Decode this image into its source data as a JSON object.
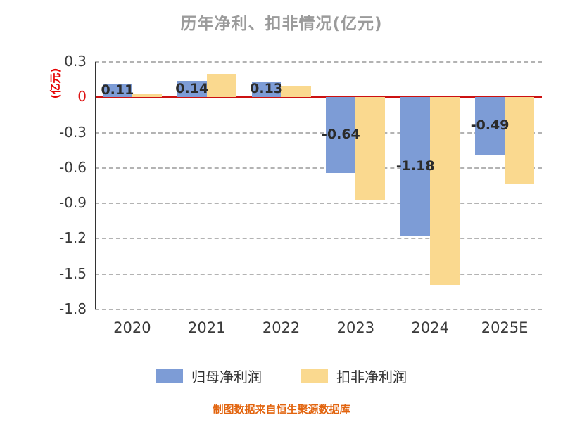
{
  "footer": "制图数据来自恒生聚源数据库",
  "chart_data": {
    "type": "bar",
    "title": "历年净利、扣非情况(亿元)",
    "ylabel": "(亿元)",
    "xlabel": "",
    "categories": [
      "2020",
      "2021",
      "2022",
      "2023",
      "2024",
      "2025E"
    ],
    "series": [
      {
        "name": "归母净利润",
        "color": "#7d9cd6",
        "values": [
          0.11,
          0.14,
          0.13,
          -0.64,
          -1.18,
          -0.49
        ],
        "labels": [
          "0.11",
          "0.14",
          "0.13",
          "-0.64",
          "-1.18",
          "-0.49"
        ]
      },
      {
        "name": "扣非净利润",
        "color": "#fad98f",
        "values": [
          0.03,
          0.2,
          0.1,
          -0.87,
          -1.59,
          -0.73
        ],
        "labels": null
      }
    ],
    "ylim": [
      -1.8,
      0.3
    ],
    "yticks": [
      0.3,
      0,
      -0.3,
      -0.6,
      -0.9,
      -1.2,
      -1.5,
      -1.8
    ],
    "grid": "horizontal dashed",
    "grid_color": "#b3b3b3",
    "zero_line_color": "#cc1111",
    "axis_label_color": "#e60000",
    "title_color": "#9b9b9b",
    "legend_position": "bottom"
  }
}
